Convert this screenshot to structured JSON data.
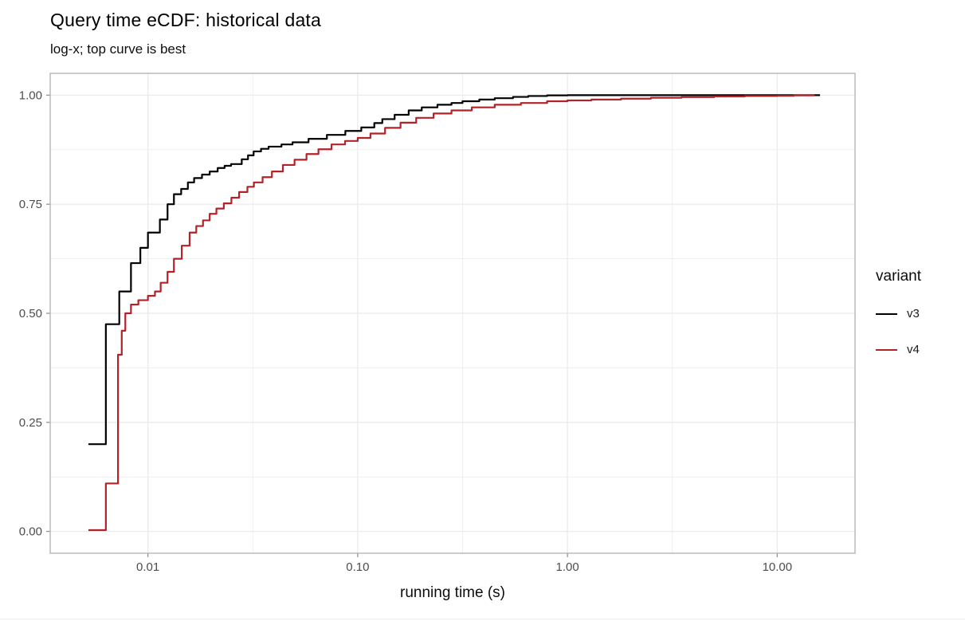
{
  "header": {
    "title": "Query time eCDF: historical data",
    "subtitle": "log-x; top curve is best"
  },
  "chart_data": {
    "type": "line",
    "subtype": "step-ecdf",
    "title": "Query time eCDF: historical data",
    "subtitle": "log-x; top curve is best",
    "xlabel": "running time (s)",
    "ylabel": "",
    "x_scale": "log10",
    "x_domain_log10": [
      -2.466,
      1.371
    ],
    "y_domain": [
      -0.05,
      1.05
    ],
    "grid": "on",
    "x_ticks": [
      {
        "label": "0.01",
        "value": 0.01
      },
      {
        "label": "0.10",
        "value": 0.1
      },
      {
        "label": "1.00",
        "value": 1.0
      },
      {
        "label": "10.00",
        "value": 10.0
      }
    ],
    "x_minor_ticks": [
      0.00316,
      0.0316,
      0.316,
      3.16,
      31.6
    ],
    "y_ticks": [
      {
        "label": "0.00",
        "value": 0.0
      },
      {
        "label": "0.25",
        "value": 0.25
      },
      {
        "label": "0.50",
        "value": 0.5
      },
      {
        "label": "0.75",
        "value": 0.75
      },
      {
        "label": "1.00",
        "value": 1.0
      }
    ],
    "y_minor_ticks": [
      0.125,
      0.375,
      0.625,
      0.875
    ],
    "legend": {
      "title": "variant",
      "position": "right",
      "items": [
        {
          "label": "v3",
          "color": "#000000"
        },
        {
          "label": "v4",
          "color": "#b22229"
        }
      ]
    },
    "series": [
      {
        "name": "v3",
        "color": "#000000",
        "points": [
          [
            0.0052,
            0.2
          ],
          [
            0.0063,
            0.475
          ],
          [
            0.0073,
            0.55
          ],
          [
            0.0083,
            0.615
          ],
          [
            0.0092,
            0.65
          ],
          [
            0.01,
            0.685
          ],
          [
            0.0114,
            0.715
          ],
          [
            0.0124,
            0.75
          ],
          [
            0.0133,
            0.773
          ],
          [
            0.0144,
            0.785
          ],
          [
            0.0155,
            0.8
          ],
          [
            0.0166,
            0.81
          ],
          [
            0.0181,
            0.818
          ],
          [
            0.0197,
            0.825
          ],
          [
            0.0215,
            0.833
          ],
          [
            0.0232,
            0.838
          ],
          [
            0.0249,
            0.842
          ],
          [
            0.028,
            0.853
          ],
          [
            0.03,
            0.862
          ],
          [
            0.0319,
            0.871
          ],
          [
            0.0346,
            0.877
          ],
          [
            0.0376,
            0.882
          ],
          [
            0.0433,
            0.887
          ],
          [
            0.0489,
            0.892
          ],
          [
            0.0583,
            0.9
          ],
          [
            0.0713,
            0.909
          ],
          [
            0.0873,
            0.918
          ],
          [
            0.104,
            0.926
          ],
          [
            0.12,
            0.936
          ],
          [
            0.131,
            0.945
          ],
          [
            0.15,
            0.955
          ],
          [
            0.175,
            0.965
          ],
          [
            0.202,
            0.972
          ],
          [
            0.24,
            0.978
          ],
          [
            0.28,
            0.982
          ],
          [
            0.316,
            0.986
          ],
          [
            0.38,
            0.99
          ],
          [
            0.45,
            0.993
          ],
          [
            0.55,
            0.996
          ],
          [
            0.65,
            0.998
          ],
          [
            0.8,
            0.9995
          ],
          [
            1.0,
            1.0
          ],
          [
            16.0,
            1.0
          ]
        ]
      },
      {
        "name": "v4",
        "color": "#b22229",
        "points": [
          [
            0.0052,
            0.003
          ],
          [
            0.0063,
            0.11
          ],
          [
            0.0072,
            0.405
          ],
          [
            0.0075,
            0.46
          ],
          [
            0.0078,
            0.5
          ],
          [
            0.0083,
            0.52
          ],
          [
            0.009,
            0.53
          ],
          [
            0.01,
            0.54
          ],
          [
            0.0108,
            0.55
          ],
          [
            0.0115,
            0.57
          ],
          [
            0.0124,
            0.595
          ],
          [
            0.0133,
            0.625
          ],
          [
            0.0145,
            0.655
          ],
          [
            0.0158,
            0.685
          ],
          [
            0.017,
            0.7
          ],
          [
            0.0183,
            0.713
          ],
          [
            0.0197,
            0.728
          ],
          [
            0.0212,
            0.74
          ],
          [
            0.023,
            0.752
          ],
          [
            0.025,
            0.765
          ],
          [
            0.0272,
            0.778
          ],
          [
            0.0298,
            0.79
          ],
          [
            0.032,
            0.8
          ],
          [
            0.0352,
            0.812
          ],
          [
            0.039,
            0.825
          ],
          [
            0.044,
            0.84
          ],
          [
            0.05,
            0.852
          ],
          [
            0.057,
            0.865
          ],
          [
            0.065,
            0.876
          ],
          [
            0.075,
            0.887
          ],
          [
            0.087,
            0.895
          ],
          [
            0.1,
            0.902
          ],
          [
            0.115,
            0.912
          ],
          [
            0.135,
            0.925
          ],
          [
            0.16,
            0.937
          ],
          [
            0.19,
            0.948
          ],
          [
            0.23,
            0.958
          ],
          [
            0.28,
            0.965
          ],
          [
            0.35,
            0.972
          ],
          [
            0.45,
            0.978
          ],
          [
            0.6,
            0.982
          ],
          [
            0.8,
            0.986
          ],
          [
            1.0,
            0.988
          ],
          [
            1.3,
            0.99
          ],
          [
            1.8,
            0.992
          ],
          [
            2.5,
            0.994
          ],
          [
            3.5,
            0.9955
          ],
          [
            5.0,
            0.997
          ],
          [
            7.0,
            0.998
          ],
          [
            10.0,
            0.9985
          ],
          [
            12.0,
            0.9995
          ],
          [
            15.0,
            1.0
          ]
        ]
      }
    ]
  },
  "style": {
    "grid_color": "#ebebeb",
    "panel_border_color": "#b0b0b0",
    "tick_color": "#8c8c8c",
    "tick_label_color": "#4d4d4d",
    "curve_width": 2.2
  }
}
